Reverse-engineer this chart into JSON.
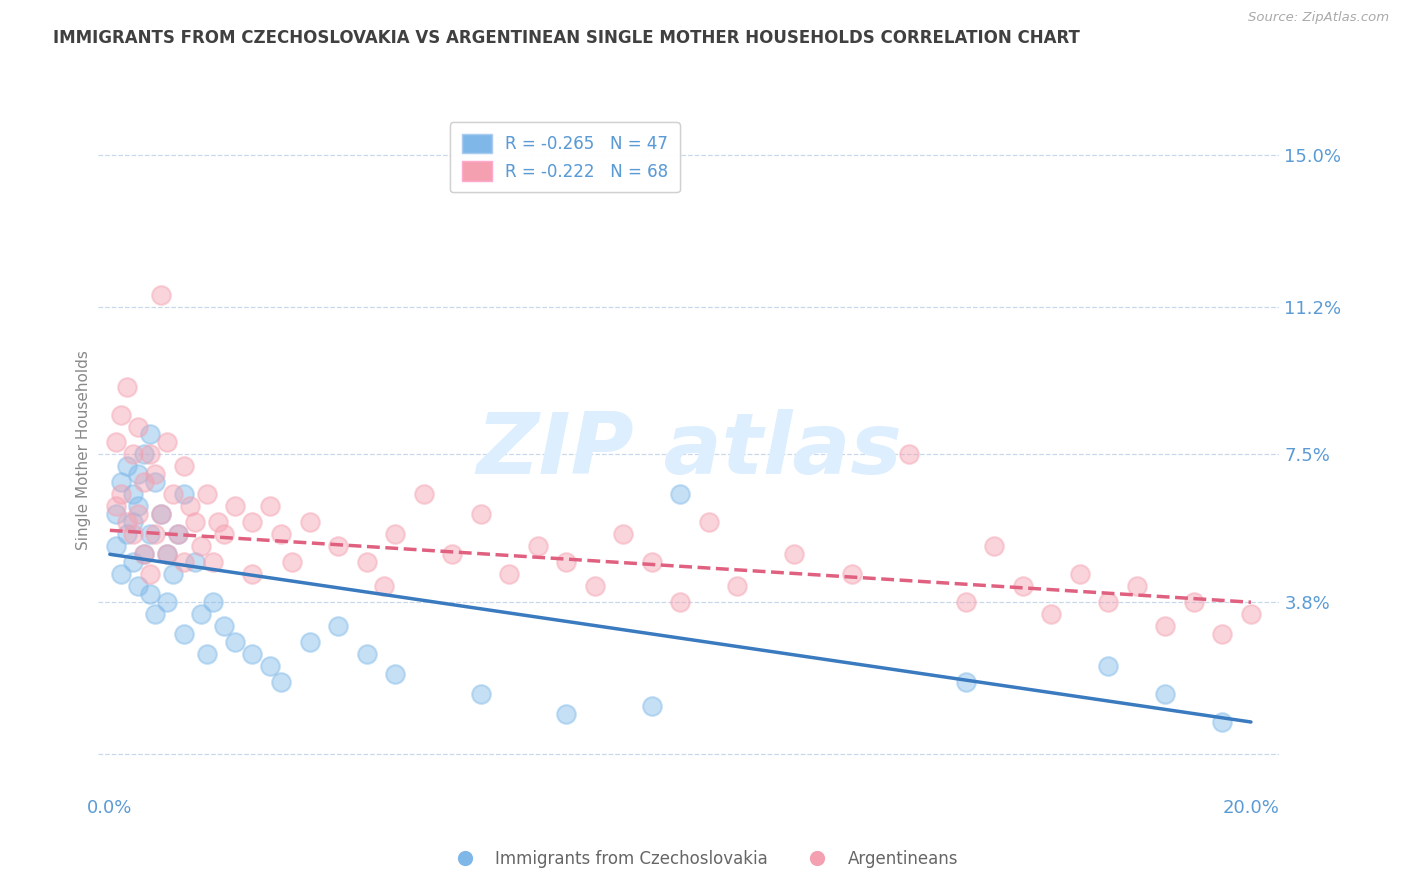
{
  "title": "IMMIGRANTS FROM CZECHOSLOVAKIA VS ARGENTINEAN SINGLE MOTHER HOUSEHOLDS CORRELATION CHART",
  "source": "Source: ZipAtlas.com",
  "ylabel": "Single Mother Households",
  "xlim": [
    -0.002,
    0.205
  ],
  "ylim": [
    -0.01,
    0.162
  ],
  "yticks": [
    0.0,
    0.038,
    0.075,
    0.112,
    0.15
  ],
  "ytick_labels": [
    "",
    "3.8%",
    "7.5%",
    "11.2%",
    "15.0%"
  ],
  "xticks": [
    0.0,
    0.05,
    0.1,
    0.15,
    0.2
  ],
  "xtick_labels": [
    "0.0%",
    "",
    "",
    "",
    "20.0%"
  ],
  "blue_R": -0.265,
  "blue_N": 47,
  "pink_R": -0.222,
  "pink_N": 68,
  "blue_color": "#7fb8e8",
  "pink_color": "#f4a0b0",
  "blue_label": "Immigrants from Czechoslovakia",
  "pink_label": "Argentineans",
  "axis_color": "#5b9bd5",
  "grid_color": "#c8d8ec",
  "title_color": "#404040",
  "blue_trend": [
    0.0,
    0.05,
    0.2,
    0.008
  ],
  "pink_trend": [
    0.0,
    0.056,
    0.2,
    0.038
  ],
  "blue_scatter": [
    [
      0.001,
      0.06
    ],
    [
      0.001,
      0.052
    ],
    [
      0.002,
      0.068
    ],
    [
      0.002,
      0.045
    ],
    [
      0.003,
      0.072
    ],
    [
      0.003,
      0.055
    ],
    [
      0.004,
      0.065
    ],
    [
      0.004,
      0.048
    ],
    [
      0.004,
      0.058
    ],
    [
      0.005,
      0.07
    ],
    [
      0.005,
      0.042
    ],
    [
      0.005,
      0.062
    ],
    [
      0.006,
      0.075
    ],
    [
      0.006,
      0.05
    ],
    [
      0.007,
      0.08
    ],
    [
      0.007,
      0.04
    ],
    [
      0.007,
      0.055
    ],
    [
      0.008,
      0.068
    ],
    [
      0.008,
      0.035
    ],
    [
      0.009,
      0.06
    ],
    [
      0.01,
      0.05
    ],
    [
      0.01,
      0.038
    ],
    [
      0.011,
      0.045
    ],
    [
      0.012,
      0.055
    ],
    [
      0.013,
      0.065
    ],
    [
      0.013,
      0.03
    ],
    [
      0.015,
      0.048
    ],
    [
      0.016,
      0.035
    ],
    [
      0.017,
      0.025
    ],
    [
      0.018,
      0.038
    ],
    [
      0.02,
      0.032
    ],
    [
      0.022,
      0.028
    ],
    [
      0.025,
      0.025
    ],
    [
      0.028,
      0.022
    ],
    [
      0.03,
      0.018
    ],
    [
      0.035,
      0.028
    ],
    [
      0.04,
      0.032
    ],
    [
      0.045,
      0.025
    ],
    [
      0.05,
      0.02
    ],
    [
      0.065,
      0.015
    ],
    [
      0.08,
      0.01
    ],
    [
      0.095,
      0.012
    ],
    [
      0.1,
      0.065
    ],
    [
      0.15,
      0.018
    ],
    [
      0.175,
      0.022
    ],
    [
      0.185,
      0.015
    ],
    [
      0.195,
      0.008
    ]
  ],
  "pink_scatter": [
    [
      0.001,
      0.078
    ],
    [
      0.001,
      0.062
    ],
    [
      0.002,
      0.085
    ],
    [
      0.002,
      0.065
    ],
    [
      0.003,
      0.092
    ],
    [
      0.003,
      0.058
    ],
    [
      0.004,
      0.075
    ],
    [
      0.004,
      0.055
    ],
    [
      0.005,
      0.082
    ],
    [
      0.005,
      0.06
    ],
    [
      0.006,
      0.068
    ],
    [
      0.006,
      0.05
    ],
    [
      0.007,
      0.075
    ],
    [
      0.007,
      0.045
    ],
    [
      0.008,
      0.07
    ],
    [
      0.008,
      0.055
    ],
    [
      0.009,
      0.115
    ],
    [
      0.009,
      0.06
    ],
    [
      0.01,
      0.078
    ],
    [
      0.01,
      0.05
    ],
    [
      0.011,
      0.065
    ],
    [
      0.012,
      0.055
    ],
    [
      0.013,
      0.072
    ],
    [
      0.013,
      0.048
    ],
    [
      0.014,
      0.062
    ],
    [
      0.015,
      0.058
    ],
    [
      0.016,
      0.052
    ],
    [
      0.017,
      0.065
    ],
    [
      0.018,
      0.048
    ],
    [
      0.019,
      0.058
    ],
    [
      0.02,
      0.055
    ],
    [
      0.022,
      0.062
    ],
    [
      0.025,
      0.058
    ],
    [
      0.025,
      0.045
    ],
    [
      0.028,
      0.062
    ],
    [
      0.03,
      0.055
    ],
    [
      0.032,
      0.048
    ],
    [
      0.035,
      0.058
    ],
    [
      0.04,
      0.052
    ],
    [
      0.045,
      0.048
    ],
    [
      0.048,
      0.042
    ],
    [
      0.05,
      0.055
    ],
    [
      0.055,
      0.065
    ],
    [
      0.06,
      0.05
    ],
    [
      0.065,
      0.06
    ],
    [
      0.07,
      0.045
    ],
    [
      0.075,
      0.052
    ],
    [
      0.08,
      0.048
    ],
    [
      0.085,
      0.042
    ],
    [
      0.09,
      0.055
    ],
    [
      0.095,
      0.048
    ],
    [
      0.1,
      0.038
    ],
    [
      0.105,
      0.058
    ],
    [
      0.11,
      0.042
    ],
    [
      0.12,
      0.05
    ],
    [
      0.13,
      0.045
    ],
    [
      0.14,
      0.075
    ],
    [
      0.15,
      0.038
    ],
    [
      0.155,
      0.052
    ],
    [
      0.16,
      0.042
    ],
    [
      0.165,
      0.035
    ],
    [
      0.17,
      0.045
    ],
    [
      0.175,
      0.038
    ],
    [
      0.18,
      0.042
    ],
    [
      0.185,
      0.032
    ],
    [
      0.19,
      0.038
    ],
    [
      0.195,
      0.03
    ],
    [
      0.2,
      0.035
    ]
  ]
}
